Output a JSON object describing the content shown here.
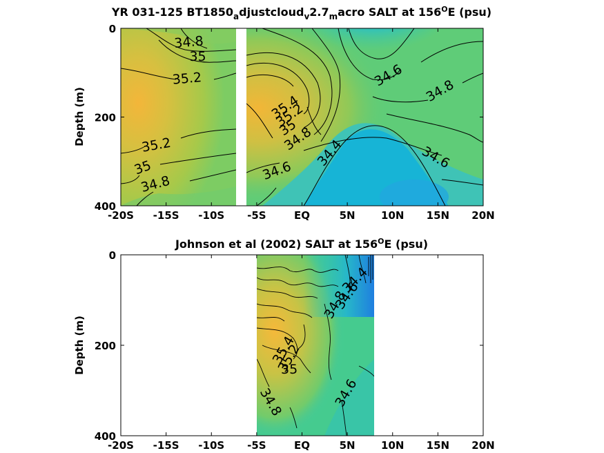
{
  "chart_data": [
    {
      "type": "contour",
      "title_parts": [
        "YR 031-125 BT1850",
        "a",
        "djustcloud",
        "v",
        "2.7",
        "m",
        "acro SALT at 156",
        "O",
        "E (psu)"
      ],
      "xlabel": "",
      "ylabel": "Depth (m)",
      "x_ticks": [
        "-20S",
        "-15S",
        "-10S",
        "-5S",
        "EQ",
        "5N",
        "10N",
        "15N",
        "20N"
      ],
      "x_tick_values": [
        -20,
        -15,
        -10,
        -5,
        0,
        5,
        10,
        15,
        20
      ],
      "y_ticks": [
        "0",
        "200",
        "400"
      ],
      "y_tick_values": [
        0,
        200,
        400
      ],
      "xlim": [
        -20,
        20
      ],
      "ylim": [
        400,
        0
      ],
      "data_gap": [
        -8,
        -7
      ],
      "contour_labels": [
        {
          "text": "34.8",
          "x": -12.5,
          "y": 30,
          "angle": -5
        },
        {
          "text": "35",
          "x": -11.5,
          "y": 62,
          "angle": 0
        },
        {
          "text": "35.2",
          "x": -12.7,
          "y": 112,
          "angle": -5
        },
        {
          "text": "35.2",
          "x": -16.1,
          "y": 262,
          "angle": -10
        },
        {
          "text": "35",
          "x": -17.6,
          "y": 313,
          "angle": -20
        },
        {
          "text": "34.8",
          "x": -16.2,
          "y": 350,
          "angle": -15
        },
        {
          "text": "35.4",
          "x": -1.9,
          "y": 177,
          "angle": -35
        },
        {
          "text": "35.2",
          "x": -1.4,
          "y": 195,
          "angle": -35
        },
        {
          "text": "35",
          "x": -1.6,
          "y": 223,
          "angle": -35
        },
        {
          "text": "34.8",
          "x": -0.5,
          "y": 248,
          "angle": -35
        },
        {
          "text": "34.6",
          "x": -2.8,
          "y": 320,
          "angle": -20
        },
        {
          "text": "34.4",
          "x": 3.0,
          "y": 280,
          "angle": -50
        },
        {
          "text": "34.6",
          "x": 9.5,
          "y": 105,
          "angle": -30
        },
        {
          "text": "34.8",
          "x": 15.2,
          "y": 140,
          "angle": -30
        },
        {
          "text": "34.6",
          "x": 14.8,
          "y": 290,
          "angle": 30
        }
      ]
    },
    {
      "type": "contour",
      "title_parts": [
        "Johnson et al (2002) SALT at 156",
        "O",
        "E (psu)"
      ],
      "xlabel": "",
      "ylabel": "Depth (m)",
      "x_ticks": [
        "-20S",
        "-15S",
        "-10S",
        "-5S",
        "EQ",
        "5N",
        "10N",
        "15N",
        "20N"
      ],
      "x_tick_values": [
        -20,
        -15,
        -10,
        -5,
        0,
        5,
        10,
        15,
        20
      ],
      "y_ticks": [
        "0",
        "200",
        "400"
      ],
      "y_tick_values": [
        0,
        200,
        400
      ],
      "xlim": [
        -20,
        20
      ],
      "ylim": [
        400,
        0
      ],
      "data_range": [
        -5,
        8
      ],
      "contour_labels": [
        {
          "text": "34.4",
          "x": 5.8,
          "y": 55,
          "angle": -45
        },
        {
          "text": "34.6",
          "x": 4.9,
          "y": 90,
          "angle": -55
        },
        {
          "text": "34.8",
          "x": 3.6,
          "y": 110,
          "angle": -60
        },
        {
          "text": "35.4",
          "x": -2.1,
          "y": 210,
          "angle": -60
        },
        {
          "text": "35.2",
          "x": -1.5,
          "y": 228,
          "angle": -60
        },
        {
          "text": "35",
          "x": -1.4,
          "y": 252,
          "angle": 0
        },
        {
          "text": "34.8",
          "x": -3.4,
          "y": 325,
          "angle": 60
        },
        {
          "text": "34.6",
          "x": 4.8,
          "y": 305,
          "angle": -60
        }
      ]
    }
  ],
  "colors": {
    "fresh": "#1aaee0",
    "mid": "#3ec9a0",
    "salty": "#f2b737",
    "fresh_deep": "#2f8fe0"
  }
}
